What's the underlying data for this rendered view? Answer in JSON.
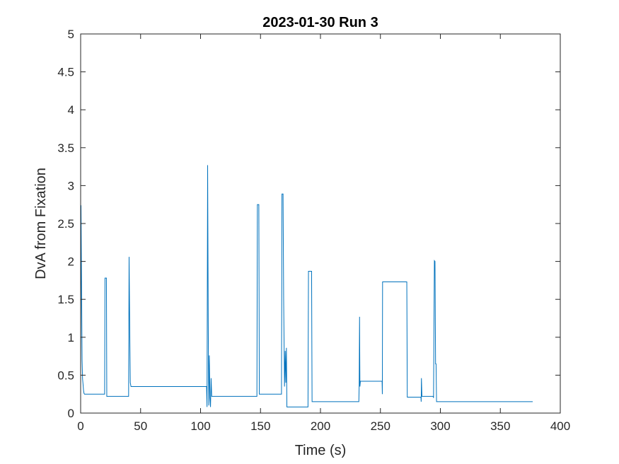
{
  "chart_data": {
    "type": "line",
    "title": "2023-01-30 Run 3",
    "xlabel": "Time (s)",
    "ylabel": "DvA from Fixation",
    "xlim": [
      0,
      400
    ],
    "ylim": [
      0,
      5
    ],
    "xticks": [
      0,
      50,
      100,
      150,
      200,
      250,
      300,
      350,
      400
    ],
    "xtick_labels": [
      "0",
      "50",
      "100",
      "150",
      "200",
      "250",
      "300",
      "350",
      "400"
    ],
    "yticks": [
      0,
      0.5,
      1,
      1.5,
      2,
      2.5,
      3,
      3.5,
      4,
      4.5,
      5
    ],
    "ytick_labels": [
      "0",
      "0.5",
      "1",
      "1.5",
      "2",
      "2.5",
      "3",
      "3.5",
      "4",
      "4.5",
      "5"
    ],
    "grid": false,
    "line_color": "#0072BD",
    "series": [
      {
        "x": [
          0,
          0.3,
          0.8,
          1.2,
          1.6,
          2.0,
          2.4,
          2.8,
          3.2,
          4,
          20,
          20.3,
          21.5,
          21.8,
          40,
          40.4,
          41,
          41.4,
          42,
          105,
          105.4,
          105.9,
          106.4,
          106.8,
          107.3,
          107.8,
          108.3,
          108.8,
          109.3,
          147,
          147.4,
          148.6,
          149,
          167.5,
          167.9,
          168.8,
          169.3,
          170,
          170.6,
          171.1,
          171.6,
          172,
          189.6,
          190,
          192.6,
          193,
          232,
          232.3,
          232.6,
          232.9,
          233.3,
          251.4,
          251.6,
          251.8,
          272,
          272.4,
          283.8,
          284,
          284.2,
          284.6,
          294,
          294.3,
          295,
          295.5,
          296,
          296.4,
          296.8,
          297.2,
          377
        ],
        "y": [
          0.5,
          2.74,
          1.6,
          0.7,
          0.45,
          0.38,
          0.3,
          0.26,
          0.25,
          0.25,
          0.25,
          1.78,
          1.78,
          0.22,
          0.22,
          2.06,
          1.0,
          0.4,
          0.35,
          0.35,
          0.08,
          3.27,
          1.2,
          0.1,
          0.76,
          0.2,
          0.08,
          0.46,
          0.22,
          0.22,
          2.75,
          2.75,
          0.25,
          0.25,
          2.89,
          2.89,
          1.5,
          0.35,
          0.82,
          0.4,
          0.86,
          0.08,
          0.08,
          1.87,
          1.87,
          0.15,
          0.15,
          0.38,
          1.27,
          0.35,
          0.42,
          0.42,
          0.25,
          1.73,
          1.73,
          0.21,
          0.21,
          0.15,
          0.46,
          0.22,
          0.22,
          0.2,
          2.01,
          2.0,
          0.65,
          0.65,
          0.15,
          0.15,
          0.15
        ]
      }
    ]
  }
}
